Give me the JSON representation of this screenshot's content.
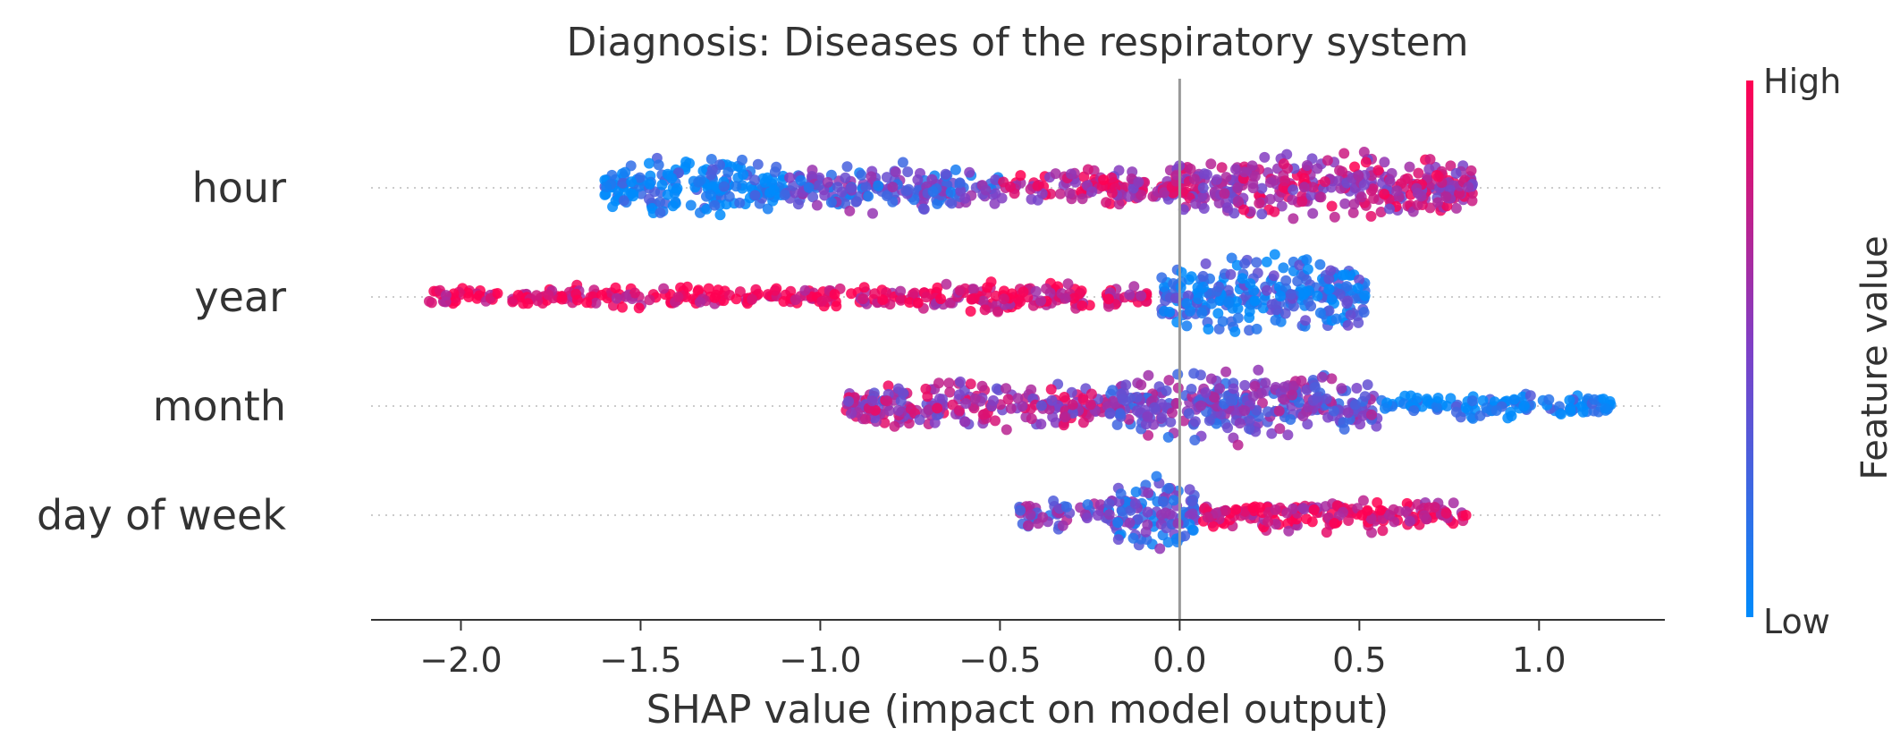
{
  "chart_data": {
    "type": "scatter",
    "subtype": "shap-beeswarm",
    "title": "Diagnosis: Diseases of the respiratory system",
    "xlabel": "SHAP value (impact on model output)",
    "ylabel": "",
    "xlim": [
      -2.25,
      1.35
    ],
    "xticks": [
      {
        "value": -2.0,
        "label": "−2.0"
      },
      {
        "value": -1.5,
        "label": "−1.5"
      },
      {
        "value": -1.0,
        "label": "−1.0"
      },
      {
        "value": -0.5,
        "label": "−0.5"
      },
      {
        "value": 0.0,
        "label": "0.0"
      },
      {
        "value": 0.5,
        "label": "0.5"
      },
      {
        "value": 1.0,
        "label": "1.0"
      }
    ],
    "grid": false,
    "zero_line": true,
    "colorbar": {
      "label": "Feature value",
      "high_label": "High",
      "low_label": "Low",
      "high_color": "#ff0052",
      "low_color": "#008bfb"
    },
    "features": [
      {
        "name": "hour",
        "min": -1.6,
        "max": 0.82,
        "segments": [
          {
            "x": [
              -1.6,
              -1.1
            ],
            "width": 0.75,
            "color": "low",
            "mix": 0.05
          },
          {
            "x": [
              -1.1,
              -0.5
            ],
            "width": 0.55,
            "color": "mixed",
            "mix": 0.35
          },
          {
            "x": [
              -0.5,
              -0.05
            ],
            "width": 0.35,
            "color": "high",
            "mix": 0.75
          },
          {
            "x": [
              -0.05,
              0.82
            ],
            "width": 0.85,
            "color": "mixed",
            "mix": 0.7
          }
        ]
      },
      {
        "name": "year",
        "min": -2.1,
        "max": 0.52,
        "segments": [
          {
            "x": [
              -2.1,
              -1.0
            ],
            "width": 0.15,
            "color": "high",
            "mix": 0.95
          },
          {
            "x": [
              -1.0,
              -0.08
            ],
            "width": 0.25,
            "color": "high",
            "mix": 0.9
          },
          {
            "x": [
              -0.05,
              0.52
            ],
            "width": 1.0,
            "color": "low",
            "mix": 0.15
          }
        ]
      },
      {
        "name": "month",
        "min": -0.93,
        "max": 1.2,
        "segments": [
          {
            "x": [
              -0.93,
              -0.2
            ],
            "width": 0.55,
            "color": "mixed",
            "mix": 0.65
          },
          {
            "x": [
              -0.2,
              0.55
            ],
            "width": 0.9,
            "color": "mixed",
            "mix": 0.45
          },
          {
            "x": [
              0.55,
              1.2
            ],
            "width": 0.2,
            "color": "low",
            "mix": 0.05
          }
        ]
      },
      {
        "name": "day of week",
        "min": -0.45,
        "max": 0.8,
        "segments": [
          {
            "x": [
              -0.45,
              -0.2
            ],
            "width": 0.3,
            "color": "mixed",
            "mix": 0.45
          },
          {
            "x": [
              -0.2,
              0.05
            ],
            "width": 0.95,
            "color": "mixed",
            "mix": 0.3
          },
          {
            "x": [
              0.05,
              0.8
            ],
            "width": 0.35,
            "color": "high",
            "mix": 0.9
          }
        ]
      }
    ]
  }
}
